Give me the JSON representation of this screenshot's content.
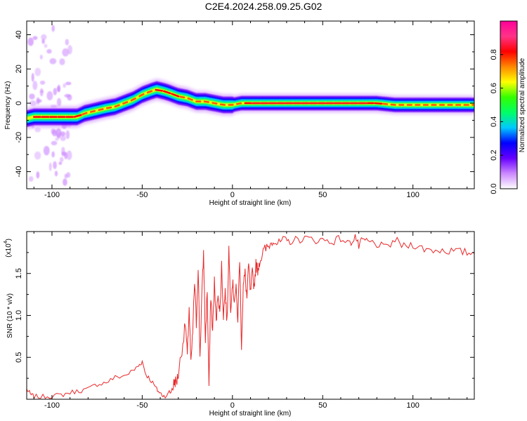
{
  "title": "C2E4.2024.258.09.25.G02",
  "chart_data": [
    {
      "type": "heatmap",
      "xlabel": "Height of straight line (km)",
      "ylabel": "Frequency (Hz)",
      "xlim": [
        -114,
        134
      ],
      "ylim": [
        -50,
        48
      ],
      "xticks": [
        -100,
        -50,
        0,
        50,
        100
      ],
      "yticks": [
        -40,
        -20,
        0,
        20,
        40
      ],
      "xtick_labels": [
        "-100",
        "-50",
        "0",
        "50",
        "100"
      ],
      "ytick_labels": [
        "-40",
        "-20",
        "0",
        "20",
        "40"
      ],
      "ridge": {
        "x": [
          -114,
          -110,
          -105,
          -100,
          -95,
          -90,
          -86,
          -82,
          -78,
          -74,
          -70,
          -65,
          -60,
          -55,
          -50,
          -45,
          -42,
          -38,
          -35,
          -30,
          -25,
          -20,
          -15,
          -10,
          -5,
          0,
          5,
          10,
          15,
          20,
          30,
          40,
          50,
          60,
          70,
          80,
          90,
          100,
          110,
          120,
          134
        ],
        "y": [
          -9,
          -8,
          -8,
          -8,
          -8,
          -8,
          -8,
          -6,
          -5,
          -4,
          -3,
          -2,
          0,
          2,
          5,
          7,
          8,
          7,
          6,
          4,
          3,
          1,
          1,
          0,
          -1,
          -1,
          0,
          0,
          0,
          0,
          0,
          0,
          0,
          0,
          0,
          0,
          -1,
          -1,
          -1,
          -1,
          -1
        ]
      },
      "colorbar": {
        "label": "Normalized spectral amplitude",
        "range": [
          0,
          1
        ],
        "ticks": [
          0.0,
          0.2,
          0.4,
          0.6,
          0.8
        ],
        "tick_labels": [
          "0.0",
          "0.2",
          "0.4",
          "0.6",
          "0.8"
        ],
        "colors": [
          "#ffffff",
          "#cc88ff",
          "#6600ff",
          "#0000ff",
          "#00c8ff",
          "#00ff66",
          "#33ff00",
          "#ffff00",
          "#ff8800",
          "#ff0000",
          "#ff3388",
          "#ff0099"
        ]
      }
    },
    {
      "type": "line",
      "xlabel": "Height of straight line (km)",
      "ylabel": "SNR (10 * v/v)",
      "scale_label": "(x10",
      "scale_exp": "4",
      "scale_close": ")",
      "xlim": [
        -114,
        134
      ],
      "ylim": [
        0,
        2.0
      ],
      "xticks": [
        -100,
        -50,
        0,
        50,
        100
      ],
      "yticks": [
        0.5,
        1.0,
        1.5
      ],
      "xtick_labels": [
        "-100",
        "-50",
        "0",
        "50",
        "100"
      ],
      "ytick_labels": [
        "0.5",
        "1.0",
        "1.5"
      ],
      "color": "#e8282a",
      "x": [
        -114,
        -112,
        -110,
        -105,
        -100,
        -95,
        -90,
        -85,
        -80,
        -75,
        -70,
        -65,
        -60,
        -55,
        -52,
        -50,
        -48,
        -45,
        -42,
        -40,
        -38,
        -35,
        -33,
        -32,
        -31,
        -30,
        -28,
        -26,
        -25,
        -24,
        -23,
        -22,
        -21,
        -20,
        -19,
        -18,
        -17,
        -16,
        -15,
        -14,
        -13,
        -12,
        -11,
        -10,
        -9,
        -8,
        -7,
        -6,
        -5,
        -4,
        -3,
        -2,
        -1,
        0,
        1,
        2,
        3,
        4,
        5,
        6,
        7,
        8,
        9,
        10,
        11,
        12,
        13,
        14,
        15,
        17,
        19,
        21,
        23,
        25,
        28,
        31,
        35,
        40,
        45,
        50,
        55,
        60,
        65,
        68,
        70,
        72,
        75,
        80,
        85,
        90,
        95,
        100,
        105,
        110,
        115,
        120,
        125,
        130,
        134
      ],
      "y": [
        0.12,
        0.06,
        0.03,
        0.03,
        0.04,
        0.05,
        0.08,
        0.1,
        0.12,
        0.18,
        0.2,
        0.26,
        0.28,
        0.34,
        0.4,
        0.45,
        0.3,
        0.22,
        0.12,
        0.07,
        0.04,
        0.06,
        0.15,
        0.22,
        0.2,
        0.3,
        0.6,
        0.9,
        0.5,
        1.1,
        0.4,
        0.8,
        1.4,
        0.9,
        1.6,
        0.5,
        1.2,
        1.75,
        0.7,
        1.3,
        0.15,
        1.25,
        0.8,
        1.4,
        0.9,
        1.3,
        1.0,
        1.6,
        1.0,
        1.3,
        0.9,
        1.8,
        1.1,
        1.4,
        1.2,
        1.3,
        0.95,
        1.7,
        0.65,
        1.35,
        1.5,
        1.2,
        1.6,
        1.25,
        1.5,
        1.35,
        1.6,
        1.55,
        1.65,
        1.75,
        1.8,
        1.85,
        1.9,
        1.85,
        1.9,
        1.88,
        1.9,
        1.92,
        1.9,
        1.9,
        1.88,
        1.92,
        1.85,
        1.95,
        1.82,
        1.9,
        1.88,
        1.85,
        1.8,
        1.9,
        1.82,
        1.85,
        1.8,
        1.78,
        1.78,
        1.77,
        1.76,
        1.75,
        1.74
      ]
    }
  ]
}
